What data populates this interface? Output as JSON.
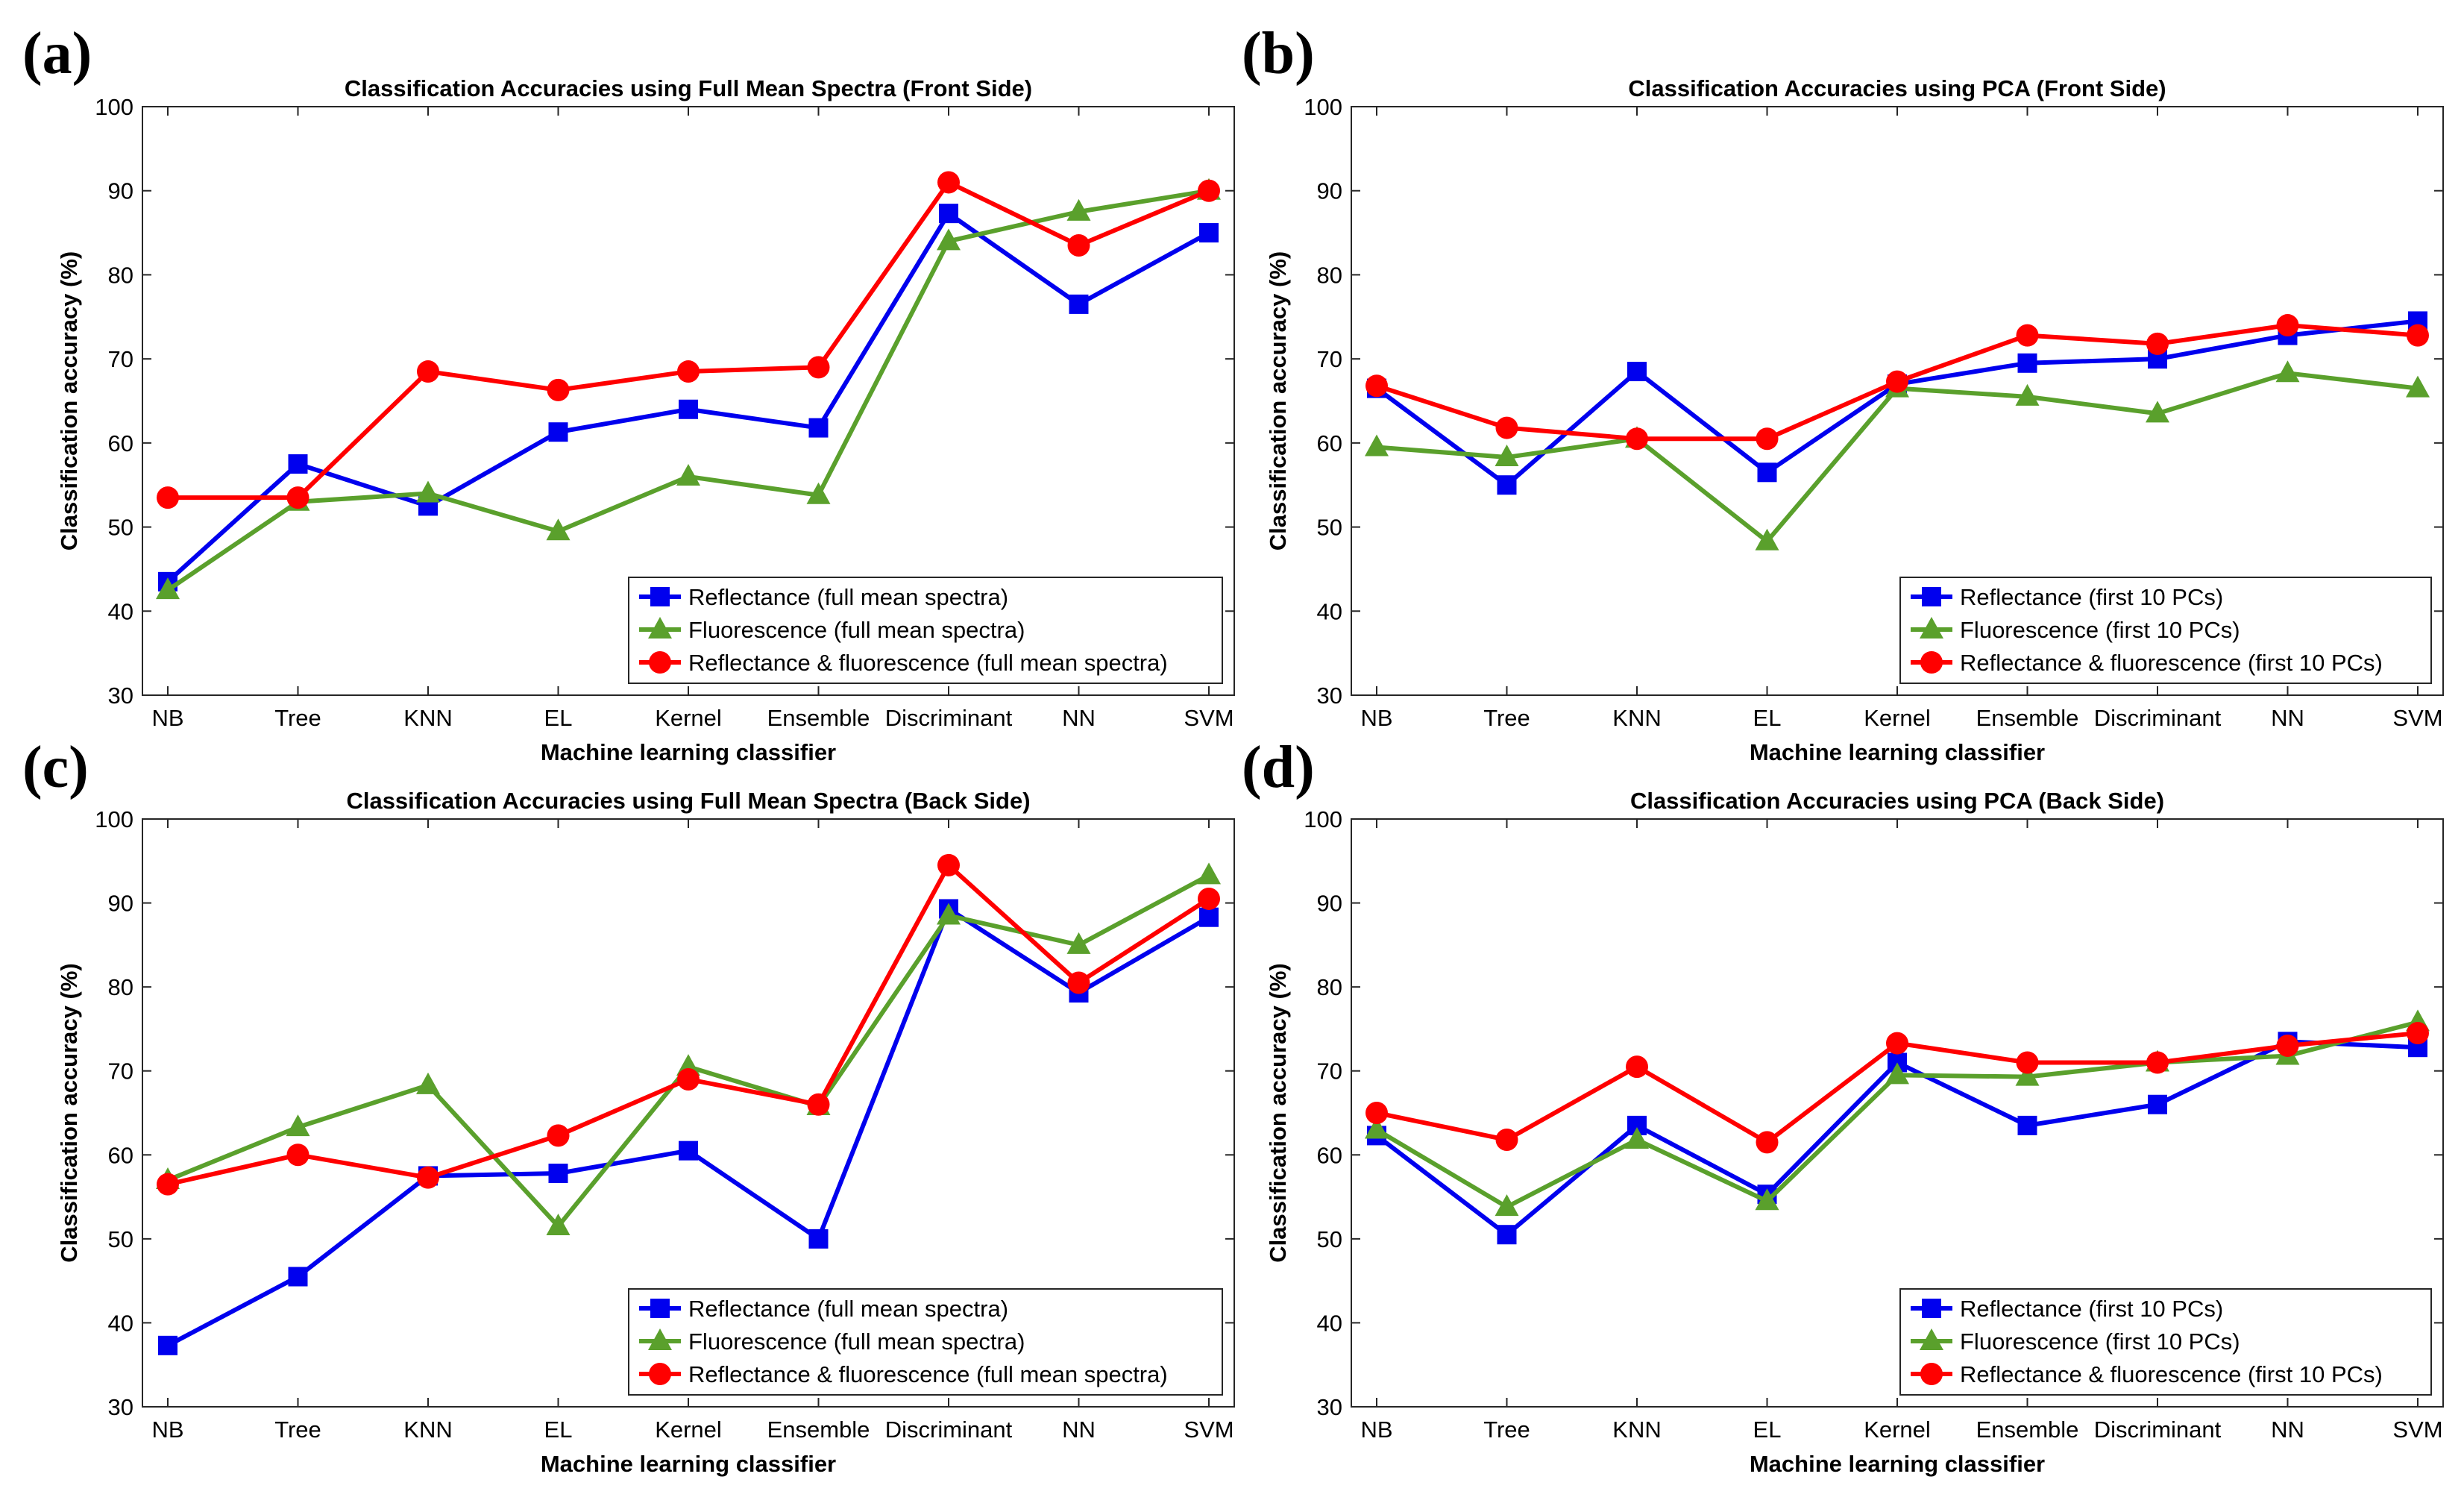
{
  "colors": {
    "series": [
      "#0000ee",
      "#5aa02c",
      "#ff0000"
    ]
  },
  "chart_data": [
    {
      "panel": "(a)",
      "type": "line",
      "title": "Classification Accuracies using Full Mean Spectra (Front Side)",
      "xlabel": "Machine learning classifier",
      "ylabel": "Classification accuracy (%)",
      "categories": [
        "NB",
        "Tree",
        "KNN",
        "EL",
        "Kernel",
        "Ensemble",
        "Discriminant",
        "NN",
        "SVM"
      ],
      "ylim": [
        30,
        100
      ],
      "yticks": [
        30,
        40,
        50,
        60,
        70,
        80,
        90,
        100
      ],
      "grid": false,
      "legend_position": "bottom-right",
      "series": [
        {
          "name": "Reflectance (full mean spectra)",
          "marker": "square",
          "values": [
            43.5,
            57.5,
            52.5,
            61.3,
            64.0,
            61.8,
            87.3,
            76.5,
            85.0
          ]
        },
        {
          "name": "Fluorescence (full mean spectra)",
          "marker": "triangle",
          "values": [
            42.5,
            53.0,
            54.0,
            49.5,
            56.0,
            53.8,
            84.0,
            87.5,
            90.0
          ]
        },
        {
          "name": "Reflectance & fluorescence (full mean spectra)",
          "marker": "circle",
          "values": [
            53.5,
            53.5,
            68.5,
            66.3,
            68.5,
            69.0,
            91.0,
            83.5,
            90.0
          ]
        }
      ]
    },
    {
      "panel": "(b)",
      "type": "line",
      "title": "Classification Accuracies using PCA (Front Side)",
      "xlabel": "Machine learning classifier",
      "ylabel": "Classification accuracy (%)",
      "categories": [
        "NB",
        "Tree",
        "KNN",
        "EL",
        "Kernel",
        "Ensemble",
        "Discriminant",
        "NN",
        "SVM"
      ],
      "ylim": [
        30,
        100
      ],
      "yticks": [
        30,
        40,
        50,
        60,
        70,
        80,
        90,
        100
      ],
      "grid": false,
      "legend_position": "bottom-right",
      "series": [
        {
          "name": "Reflectance (first 10 PCs)",
          "marker": "square",
          "values": [
            66.5,
            55.0,
            68.5,
            56.5,
            67.0,
            69.5,
            70.0,
            72.8,
            74.5
          ]
        },
        {
          "name": "Fluorescence (first 10 PCs)",
          "marker": "triangle",
          "values": [
            59.5,
            58.3,
            60.5,
            48.3,
            66.5,
            65.5,
            63.5,
            68.3,
            66.5
          ]
        },
        {
          "name": "Reflectance & fluorescence (first 10 PCs)",
          "marker": "circle",
          "values": [
            66.8,
            61.8,
            60.5,
            60.5,
            67.3,
            72.8,
            71.8,
            74.0,
            72.8
          ]
        }
      ]
    },
    {
      "panel": "(c)",
      "type": "line",
      "title": "Classification Accuracies using Full Mean Spectra (Back Side)",
      "xlabel": "Machine learning classifier",
      "ylabel": "Classification accuracy (%)",
      "categories": [
        "NB",
        "Tree",
        "KNN",
        "EL",
        "Kernel",
        "Ensemble",
        "Discriminant",
        "NN",
        "SVM"
      ],
      "ylim": [
        30,
        100
      ],
      "yticks": [
        30,
        40,
        50,
        60,
        70,
        80,
        90,
        100
      ],
      "grid": false,
      "legend_position": "bottom-right",
      "series": [
        {
          "name": "Reflectance (full mean spectra)",
          "marker": "square",
          "values": [
            37.3,
            45.5,
            57.5,
            57.8,
            60.5,
            50.0,
            89.3,
            79.3,
            88.3
          ]
        },
        {
          "name": "Fluorescence (full mean spectra)",
          "marker": "triangle",
          "values": [
            57.0,
            63.3,
            68.3,
            51.5,
            70.5,
            65.8,
            88.5,
            85.0,
            93.3
          ]
        },
        {
          "name": "Reflectance & fluorescence (full mean spectra)",
          "marker": "circle",
          "values": [
            56.5,
            60.0,
            57.3,
            62.3,
            69.0,
            66.0,
            94.5,
            80.5,
            90.5
          ]
        }
      ]
    },
    {
      "panel": "(d)",
      "type": "line",
      "title": "Classification Accuracies using PCA (Back Side)",
      "xlabel": "Machine learning classifier",
      "ylabel": "Classification accuracy (%)",
      "categories": [
        "NB",
        "Tree",
        "KNN",
        "EL",
        "Kernel",
        "Ensemble",
        "Discriminant",
        "NN",
        "SVM"
      ],
      "ylim": [
        30,
        100
      ],
      "yticks": [
        30,
        40,
        50,
        60,
        70,
        80,
        90,
        100
      ],
      "grid": false,
      "legend_position": "bottom-right",
      "series": [
        {
          "name": "Reflectance (first 10 PCs)",
          "marker": "square",
          "values": [
            62.3,
            50.5,
            63.5,
            55.3,
            71.0,
            63.5,
            66.0,
            73.5,
            72.8
          ]
        },
        {
          "name": "Fluorescence (first 10 PCs)",
          "marker": "triangle",
          "values": [
            63.0,
            53.8,
            61.8,
            54.5,
            69.5,
            69.3,
            71.0,
            71.8,
            75.8
          ]
        },
        {
          "name": "Reflectance & fluorescence (first 10 PCs)",
          "marker": "circle",
          "values": [
            65.0,
            61.8,
            70.5,
            61.5,
            73.3,
            71.0,
            71.0,
            73.0,
            74.5
          ]
        }
      ]
    }
  ]
}
